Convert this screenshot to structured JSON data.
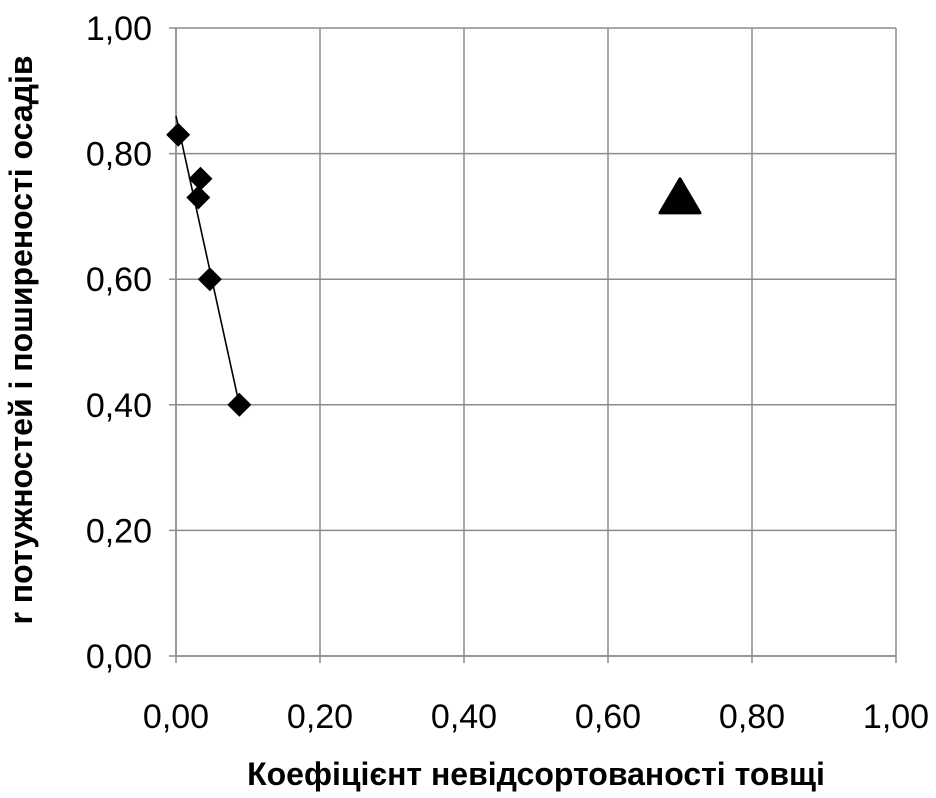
{
  "chart_data": {
    "type": "scatter",
    "title": "",
    "xlabel": "Коефіцієнт невідсортованості товщі",
    "ylabel": "r потужностей і поширеності осадів",
    "xlim": [
      0,
      1
    ],
    "ylim": [
      0,
      1
    ],
    "x_ticks": [
      "0,00",
      "0,20",
      "0,40",
      "0,60",
      "0,80",
      "1,00"
    ],
    "y_ticks": [
      "0,00",
      "0,20",
      "0,40",
      "0,60",
      "0,80",
      "1,00"
    ],
    "grid": true,
    "legend": "none",
    "series": [
      {
        "marker": "diamond",
        "color": "#000000",
        "connect_with_line": true,
        "points": [
          {
            "x": 0.003,
            "y": 0.83
          },
          {
            "x": 0.034,
            "y": 0.76
          },
          {
            "x": 0.031,
            "y": 0.73
          },
          {
            "x": 0.047,
            "y": 0.6
          },
          {
            "x": 0.088,
            "y": 0.4
          }
        ]
      },
      {
        "marker": "triangle",
        "color": "#000000",
        "connect_with_line": false,
        "points": [
          {
            "x": 0.7,
            "y": 0.73
          }
        ]
      }
    ],
    "trendline": {
      "color": "#000000",
      "points": [
        {
          "x": 0.0,
          "y": 0.86
        },
        {
          "x": 0.088,
          "y": 0.4
        }
      ]
    }
  }
}
